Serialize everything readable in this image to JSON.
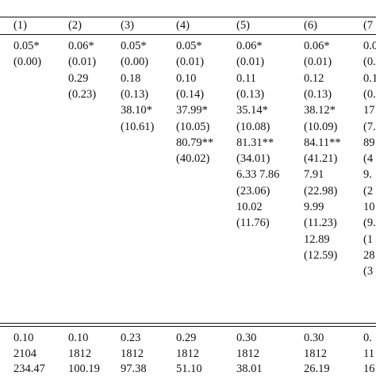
{
  "table": {
    "columns": [
      {
        "header": "(1)",
        "rows": [
          "0.05*",
          "(0.00)",
          "",
          "",
          "",
          "",
          "",
          "",
          "",
          "",
          "",
          "",
          "",
          "",
          "",
          ""
        ],
        "stats": [
          "0.10",
          "2104",
          "234.47"
        ]
      },
      {
        "header": "(2)",
        "rows": [
          "0.06*",
          "(0.01)",
          "0.29",
          "(0.23)",
          "",
          "",
          "",
          "",
          "",
          "",
          "",
          "",
          "",
          "",
          "",
          ""
        ],
        "stats": [
          "0.10",
          "1812",
          "100.19"
        ]
      },
      {
        "header": "(3)",
        "rows": [
          "0.05*",
          "(0.00)",
          "0.18",
          "(0.13)",
          "38.10*",
          "(10.61)",
          "",
          "",
          "",
          "",
          "",
          "",
          "",
          "",
          "",
          ""
        ],
        "stats": [
          "0.23",
          "1812",
          "97.38"
        ]
      },
      {
        "header": "(4)",
        "rows": [
          "0.05*",
          "(0.01)",
          "0.10",
          "(0.14)",
          "37.99*",
          "(10.05)",
          "80.79**",
          "(40.02)",
          "",
          "",
          "",
          "",
          "",
          "",
          "",
          ""
        ],
        "stats": [
          "0.29",
          "1812",
          "51.10"
        ]
      },
      {
        "header": "(5)",
        "rows": [
          "0.06*",
          "(0.01)",
          "0.11",
          "(0.13)",
          "35.14*",
          "(10.08)",
          "81.31**",
          "(34.01)",
          "6.33 7.86",
          "(23.06)",
          "10.02",
          "(11.76)",
          "",
          "",
          "",
          ""
        ],
        "stats": [
          "0.30",
          "1812",
          "38.01"
        ]
      },
      {
        "header": "(6)",
        "rows": [
          "0.06*",
          "(0.01)",
          "0.12",
          "(0.13)",
          "38.12*",
          "(10.09)",
          "84.11**",
          "(41.21)",
          "7.91",
          "(22.98)",
          "9.99",
          "(11.23)",
          "12.89",
          "(12.59)",
          "",
          ""
        ],
        "stats": [
          "0.30",
          "1812",
          "26.19"
        ]
      },
      {
        "header": "(7",
        "rows": [
          "0.0",
          "(0.",
          "0.1",
          "(0.",
          "17",
          "(7.",
          "89",
          "(4",
          "9.",
          "(2",
          "10",
          "(9.",
          "(1",
          "28",
          "(3",
          ""
        ],
        "stats": [
          "0.",
          "11",
          "16"
        ]
      }
    ]
  }
}
